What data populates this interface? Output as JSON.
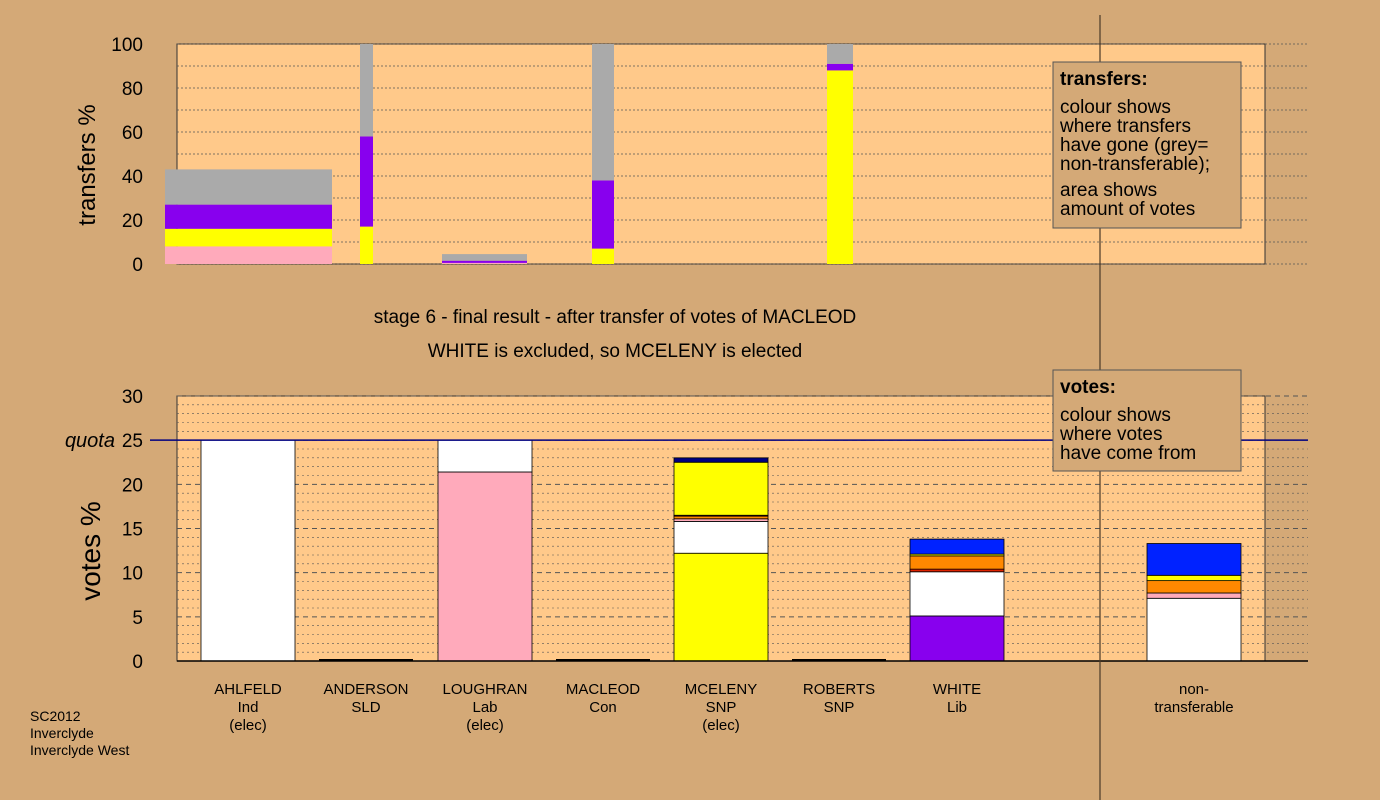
{
  "colors": {
    "background": "#d4a977",
    "plot_bg": "#ffc98a",
    "grey": "#aaaaaa",
    "purple": "#8800ee",
    "yellow": "#ffff00",
    "pink": "#ffaabb",
    "white": "#ffffff",
    "orange": "#ff8800",
    "red": "#dd2200",
    "blue": "#0022ff",
    "navy": "#000080"
  },
  "chart_data": [
    {
      "type": "bar",
      "stacked": true,
      "variable_width": true,
      "ylabel": "transfers %",
      "ylim": [
        0,
        100
      ],
      "yticks": [
        0,
        20,
        40,
        60,
        80,
        100
      ],
      "note": "bar width proportional to the transferring candidate's votes",
      "bars": [
        {
          "segments": [
            {
              "color": "pink",
              "value": 8
            },
            {
              "color": "yellow",
              "value": 8
            },
            {
              "color": "purple",
              "value": 11
            },
            {
              "color": "grey",
              "value": 16
            }
          ]
        },
        {
          "segments": [
            {
              "color": "yellow",
              "value": 17
            },
            {
              "color": "purple",
              "value": 41
            },
            {
              "color": "grey",
              "value": 42
            }
          ]
        },
        {
          "segments": [
            {
              "color": "pink",
              "value": 0.5
            },
            {
              "color": "purple",
              "value": 1
            },
            {
              "color": "grey",
              "value": 3
            }
          ]
        },
        {
          "segments": [
            {
              "color": "yellow",
              "value": 7
            },
            {
              "color": "purple",
              "value": 31
            },
            {
              "color": "grey",
              "value": 62
            }
          ]
        },
        {
          "segments": [
            {
              "color": "yellow",
              "value": 88
            },
            {
              "color": "purple",
              "value": 3
            },
            {
              "color": "grey",
              "value": 9
            }
          ]
        }
      ]
    },
    {
      "type": "bar",
      "stacked": true,
      "ylabel": "votes %",
      "ylim": [
        0,
        30
      ],
      "yticks": [
        0,
        5,
        10,
        15,
        20,
        25,
        30
      ],
      "quota": {
        "label": "quota",
        "value": 25
      },
      "categories": [
        {
          "name": "AHLFELD",
          "party": "Ind",
          "status": "(elec)"
        },
        {
          "name": "ANDERSON",
          "party": "SLD",
          "status": ""
        },
        {
          "name": "LOUGHRAN",
          "party": "Lab",
          "status": "(elec)"
        },
        {
          "name": "MACLEOD",
          "party": "Con",
          "status": ""
        },
        {
          "name": "MCELENY",
          "party": "SNP",
          "status": "(elec)"
        },
        {
          "name": "ROBERTS",
          "party": "SNP",
          "status": ""
        },
        {
          "name": "WHITE",
          "party": "Lib",
          "status": ""
        },
        {
          "name": "non-",
          "party": "transferable",
          "status": ""
        }
      ],
      "bars": [
        [
          {
            "color": "white",
            "value": 25
          }
        ],
        [],
        [
          {
            "color": "pink",
            "value": 21.4
          },
          {
            "color": "white",
            "value": 3.6
          }
        ],
        [],
        [
          {
            "color": "yellow",
            "value": 12.2
          },
          {
            "color": "white",
            "value": 3.6
          },
          {
            "color": "pink",
            "value": 0.3
          },
          {
            "color": "orange",
            "value": 0.3
          },
          {
            "color": "red",
            "value": 0.1
          },
          {
            "color": "yellow",
            "value": 6.0
          },
          {
            "color": "navy",
            "value": 0.5
          }
        ],
        [],
        [
          {
            "color": "purple",
            "value": 5.1
          },
          {
            "color": "white",
            "value": 5.0
          },
          {
            "color": "red",
            "value": 0.3
          },
          {
            "color": "orange",
            "value": 1.5
          },
          {
            "color": "yellow",
            "value": 0.2
          },
          {
            "color": "blue",
            "value": 1.7
          }
        ],
        [
          {
            "color": "white",
            "value": 7.1
          },
          {
            "color": "pink",
            "value": 0.6
          },
          {
            "color": "orange",
            "value": 1.4
          },
          {
            "color": "yellow",
            "value": 0.6
          },
          {
            "color": "blue",
            "value": 3.6
          }
        ]
      ]
    }
  ],
  "titles": {
    "line1": "stage 6 - final result - after transfer of votes of MACLEOD",
    "line2": "WHITE is excluded, so MCELENY is elected"
  },
  "legend_transfers": {
    "title": "transfers:",
    "lines": [
      "colour shows",
      "where transfers",
      "have gone (grey=",
      "non-transferable);"
    ],
    "lines2": [
      "area shows",
      "amount of votes"
    ]
  },
  "legend_votes": {
    "title": "votes:",
    "lines": [
      "colour shows",
      "where votes",
      "have come from"
    ]
  },
  "footer": [
    "SC2012",
    "Inverclyde",
    "Inverclyde West"
  ]
}
